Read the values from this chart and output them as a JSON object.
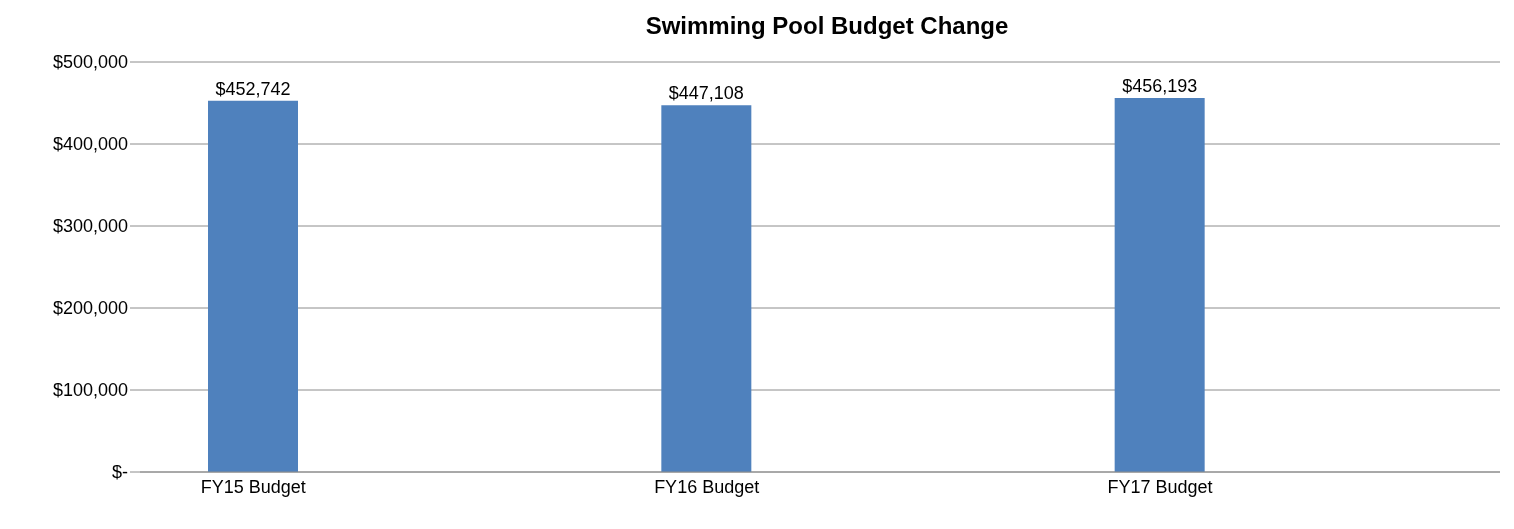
{
  "chart_data": {
    "type": "bar",
    "title": "Swimming Pool Budget Change",
    "categories": [
      "FY15 Budget",
      null,
      "FY16 Budget",
      null,
      "FY17 Budget",
      null
    ],
    "values": [
      452742,
      null,
      447108,
      null,
      456193,
      null
    ],
    "value_labels": [
      "$452,742",
      null,
      "$447,108",
      null,
      "$456,193",
      null
    ],
    "color": "#4f81bd",
    "ylim": [
      0,
      500000
    ],
    "yticks": [
      {
        "value": 0,
        "label": "$-"
      },
      {
        "value": 100000,
        "label": "$100,000"
      },
      {
        "value": 200000,
        "label": "$200,000"
      },
      {
        "value": 300000,
        "label": "$300,000"
      },
      {
        "value": 400000,
        "label": "$400,000"
      },
      {
        "value": 500000,
        "label": "$500,000"
      }
    ],
    "grid": "y"
  }
}
